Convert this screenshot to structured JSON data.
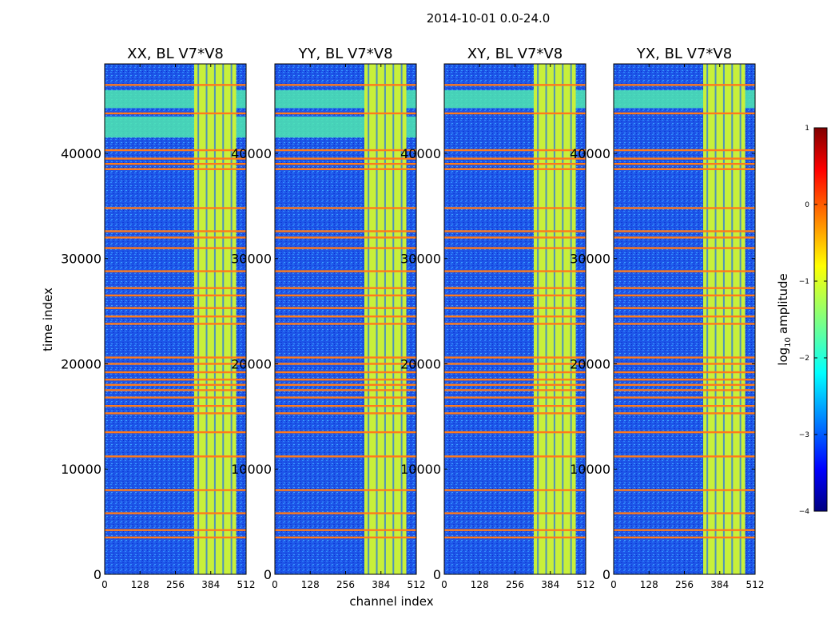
{
  "chart_data": {
    "type": "heatmap",
    "suptitle": "2014-10-01 0.0-24.0",
    "xlabel": "channel index",
    "ylabel": "time index",
    "xlim": [
      0,
      512
    ],
    "ylim": [
      0,
      48500
    ],
    "x_ticks": [
      0,
      128,
      256,
      384,
      512
    ],
    "y_ticks": [
      0,
      10000,
      20000,
      30000,
      40000
    ],
    "panels": [
      {
        "title": "XX, BL V7*V8",
        "high_band_rows": [
          [
            41500,
            43500
          ],
          [
            44300,
            46000
          ]
        ]
      },
      {
        "title": "YY, BL V7*V8",
        "high_band_rows": [
          [
            41500,
            43500
          ],
          [
            44300,
            46000
          ]
        ]
      },
      {
        "title": "XY, BL V7*V8",
        "high_band_rows": [
          [
            44300,
            46000
          ]
        ]
      },
      {
        "title": "YX, BL V7*V8",
        "high_band_rows": [
          [
            44300,
            46000
          ]
        ]
      }
    ],
    "bright_channel_range": [
      324,
      476
    ],
    "flagged_time_rows": [
      3500,
      4200,
      5800,
      8000,
      11200,
      13500,
      15300,
      16000,
      16800,
      17500,
      18000,
      18500,
      19200,
      20000,
      20600,
      23800,
      24500,
      25300,
      26500,
      27200,
      28800,
      31000,
      32000,
      32600,
      34800,
      38500,
      39000,
      39500,
      40300,
      43800,
      46500
    ],
    "colorbar": {
      "label_main": "log",
      "label_sub": "10",
      "label_rest": "amplitude",
      "range": [
        -4,
        1
      ],
      "ticks": [
        "1",
        "0",
        "−1",
        "−2",
        "−3",
        "−4"
      ],
      "tick_values": [
        1,
        0,
        -1,
        -2,
        -3,
        -4
      ],
      "colors": [
        "#000080",
        "#0000ff",
        "#0080ff",
        "#00ffff",
        "#80ff80",
        "#ffff00",
        "#ff8000",
        "#ff0000",
        "#800000"
      ]
    }
  }
}
